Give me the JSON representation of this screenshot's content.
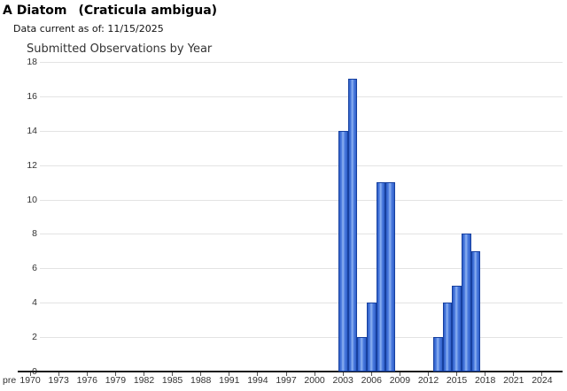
{
  "header": {
    "title_common": "A Diatom",
    "title_scientific": "(Craticula ambigua)",
    "data_current": "Data current as of: 11/15/2025"
  },
  "chart_data": {
    "type": "bar",
    "title": "Submitted Observations by Year",
    "xlabel": "",
    "ylabel": "",
    "ylim": [
      0,
      18
    ],
    "ytick_step": 2,
    "grid": true,
    "xticklabels": [
      "pre",
      "1970",
      "1973",
      "1976",
      "1979",
      "1982",
      "1985",
      "1988",
      "1991",
      "1994",
      "1997",
      "2000",
      "2003",
      "2006",
      "2009",
      "2012",
      "2015",
      "2018",
      "2021",
      "2024"
    ],
    "series": [
      {
        "name": "Submitted Observations",
        "points": [
          {
            "year": 2003,
            "value": 14
          },
          {
            "year": 2004,
            "value": 17
          },
          {
            "year": 2005,
            "value": 2
          },
          {
            "year": 2006,
            "value": 4
          },
          {
            "year": 2007,
            "value": 11
          },
          {
            "year": 2008,
            "value": 11
          },
          {
            "year": 2013,
            "value": 2
          },
          {
            "year": 2014,
            "value": 4
          },
          {
            "year": 2015,
            "value": 5
          },
          {
            "year": 2016,
            "value": 8
          },
          {
            "year": 2017,
            "value": 7
          }
        ]
      }
    ],
    "colors": {
      "bar_edge_dark": "#2e5fc9",
      "bar_mid": "#4a7ade",
      "bar_highlight": "#8fb3f2",
      "bar_border": "#17409f",
      "gridline": "#e3e3e3",
      "axis": "#1a1a1a",
      "tick": "#555555",
      "tick_label": "#333333"
    }
  }
}
